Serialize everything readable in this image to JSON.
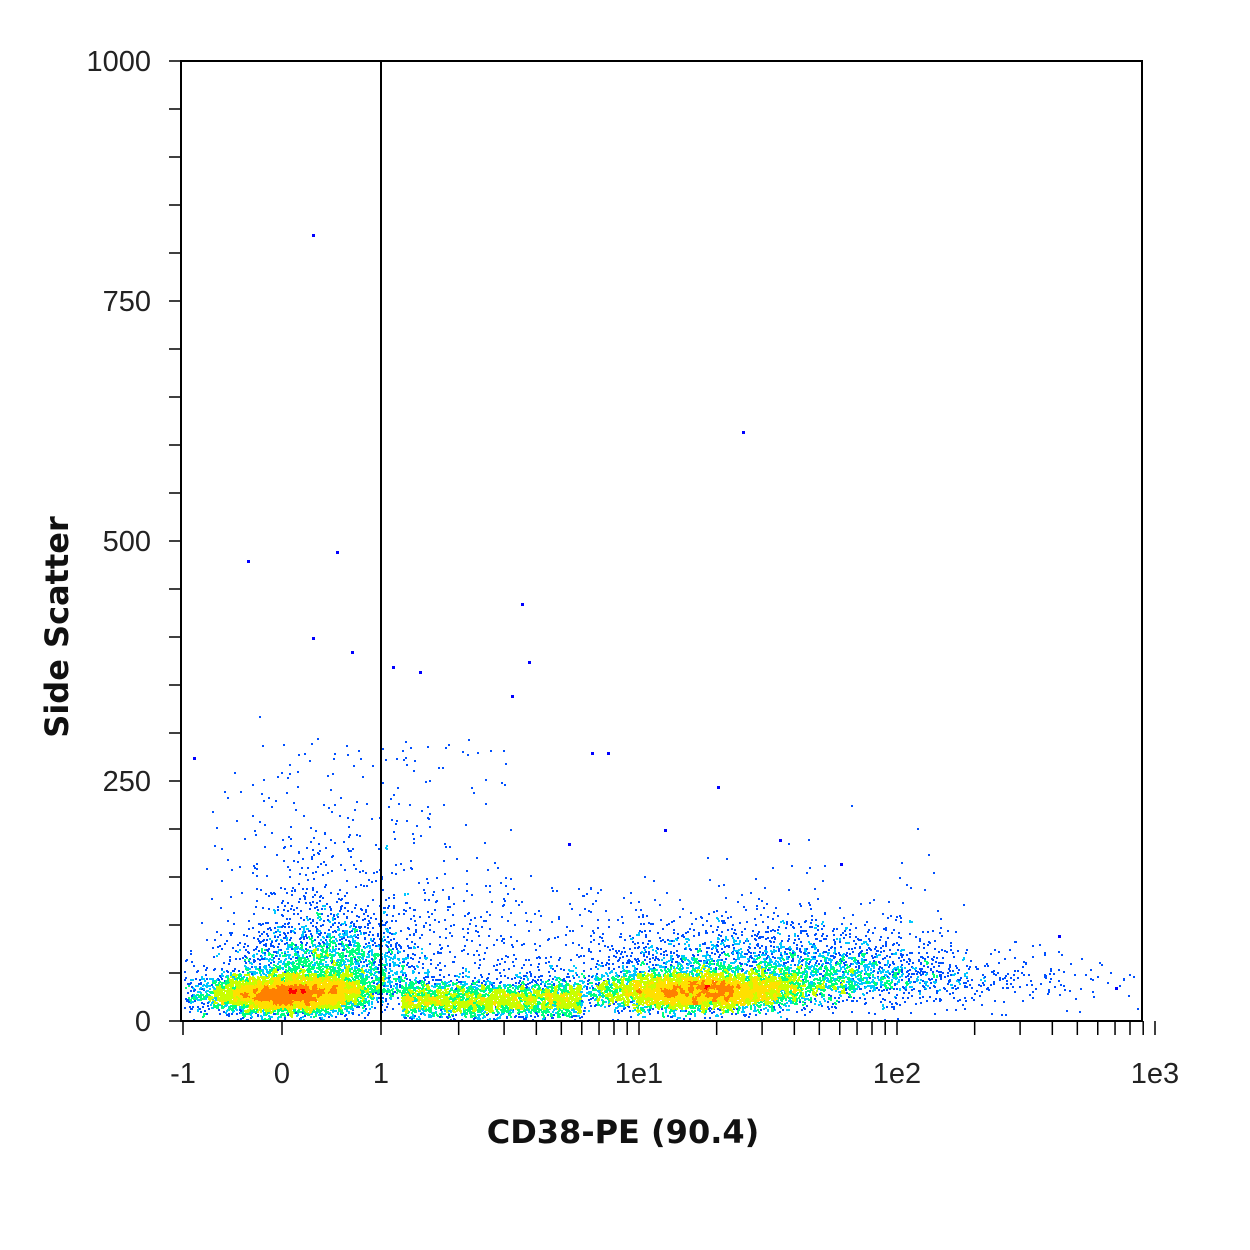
{
  "chart_data": {
    "type": "scatter",
    "plot_style": "density dot plot (flow cytometry)",
    "xlabel": "CD38-PE (90.4)",
    "ylabel": "Side Scatter",
    "x_scale": "biexponential (linear near 0, logarithmic above 1)",
    "xlim": [
      -1,
      1000
    ],
    "ylim": [
      0,
      1000
    ],
    "x_ticks": [
      {
        "value": -1,
        "label": "-1"
      },
      {
        "value": 0,
        "label": "0"
      },
      {
        "value": 1,
        "label": "1"
      },
      {
        "value": 10,
        "label": "1e1"
      },
      {
        "value": 100,
        "label": "1e2"
      },
      {
        "value": 1000,
        "label": "1e3"
      }
    ],
    "y_ticks": [
      {
        "value": 0,
        "label": "0"
      },
      {
        "value": 250,
        "label": "250"
      },
      {
        "value": 500,
        "label": "500"
      },
      {
        "value": 750,
        "label": "750"
      },
      {
        "value": 1000,
        "label": "1000"
      }
    ],
    "gate_line": {
      "orientation": "vertical",
      "x": 1
    },
    "populations": [
      {
        "center_x": 0.05,
        "center_y": 25,
        "density": "high",
        "color_at_peak": "#ff2200"
      },
      {
        "center_x": 17,
        "center_y": 28,
        "density": "high",
        "color_at_peak": "#ff4400"
      }
    ],
    "outliers": [
      {
        "x": 0.3,
        "y": 820
      },
      {
        "x": 25,
        "y": 615
      },
      {
        "x": -0.35,
        "y": 480
      },
      {
        "x": 0.55,
        "y": 490
      },
      {
        "x": 3.5,
        "y": 435
      },
      {
        "x": 0.3,
        "y": 400
      },
      {
        "x": 3.7,
        "y": 375
      },
      {
        "x": 1.1,
        "y": 370
      },
      {
        "x": 0.7,
        "y": 385
      },
      {
        "x": 1.4,
        "y": 365
      },
      {
        "x": 3.2,
        "y": 340
      },
      {
        "x": -0.9,
        "y": 275
      },
      {
        "x": 6.5,
        "y": 280
      },
      {
        "x": 7.5,
        "y": 280
      },
      {
        "x": 20,
        "y": 245
      },
      {
        "x": 12.5,
        "y": 200
      },
      {
        "x": 35,
        "y": 190
      },
      {
        "x": 5.3,
        "y": 185
      },
      {
        "x": 60,
        "y": 165
      },
      {
        "x": 420,
        "y": 90
      },
      {
        "x": 700,
        "y": 35
      }
    ],
    "density_colormap": [
      "#0000ff",
      "#0050ff",
      "#00c8ff",
      "#00ff80",
      "#c8ff00",
      "#ffe000",
      "#ff8000",
      "#ff0000"
    ]
  },
  "colors": {
    "axis": "#000000",
    "gate": "#000000",
    "background": "#ffffff"
  }
}
